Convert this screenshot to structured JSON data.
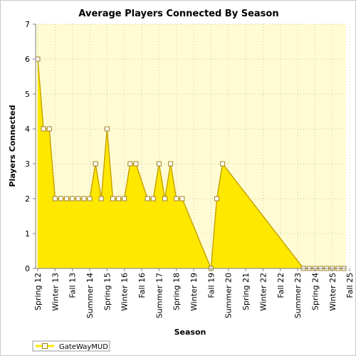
{
  "chart_data": {
    "type": "area",
    "title": "Average Players Connected By Season",
    "xlabel": "Season",
    "ylabel": "Players Connected",
    "ylim": [
      0,
      7
    ],
    "yticks": [
      "0",
      "1",
      "2",
      "3",
      "4",
      "5",
      "6",
      "7"
    ],
    "x_tick_labels": [
      {
        "index": 0,
        "label": "Spring 12"
      },
      {
        "index": 3,
        "label": "Winter 13"
      },
      {
        "index": 6,
        "label": "Fall 13"
      },
      {
        "index": 9,
        "label": "Summer 14"
      },
      {
        "index": 12,
        "label": "Spring 15"
      },
      {
        "index": 15,
        "label": "Winter 16"
      },
      {
        "index": 18,
        "label": "Fall 16"
      },
      {
        "index": 21,
        "label": "Summer 17"
      },
      {
        "index": 24,
        "label": "Spring 18"
      },
      {
        "index": 27,
        "label": "Winter 19"
      },
      {
        "index": 30,
        "label": "Fall 19"
      },
      {
        "index": 33,
        "label": "Summer 20"
      },
      {
        "index": 36,
        "label": "Spring 21"
      },
      {
        "index": 39,
        "label": "Winter 22"
      },
      {
        "index": 42,
        "label": "Fall 22"
      },
      {
        "index": 45,
        "label": "Summer 23"
      },
      {
        "index": 48,
        "label": "Spring 24"
      },
      {
        "index": 51,
        "label": "Winter 25"
      },
      {
        "index": 54,
        "label": "Fall 25"
      }
    ],
    "series": [
      {
        "name": "GateWayMUD",
        "values": [
          6,
          4,
          4,
          2,
          2,
          2,
          2,
          2,
          2,
          2,
          3,
          2,
          4,
          2,
          2,
          2,
          3,
          3,
          null,
          2,
          2,
          3,
          2,
          3,
          2,
          2,
          null,
          null,
          null,
          null,
          0,
          2,
          3,
          null,
          null,
          null,
          null,
          null,
          null,
          null,
          null,
          null,
          null,
          null,
          null,
          null,
          0,
          0,
          0,
          0,
          0,
          0,
          0,
          0
        ]
      }
    ],
    "grid": true,
    "legend_position": "bottom-left",
    "colors": {
      "fill": "#ffe800",
      "line": "#c8a400",
      "marker_stroke": "#a08020",
      "plot_bg": "#fffcd4",
      "grid": "#c8c8a0"
    }
  }
}
